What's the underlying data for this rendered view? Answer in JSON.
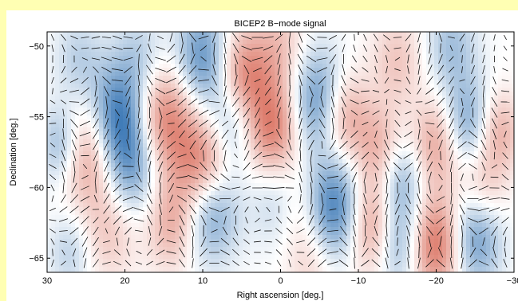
{
  "chart_data": {
    "type": "heatmap",
    "title": "BICEP2 B−mode signal",
    "xlabel": "Right ascension [deg.]",
    "ylabel": "Declination [deg.]",
    "xlim": [
      30,
      -30
    ],
    "ylim": [
      -66,
      -49
    ],
    "x_ticks": [
      30,
      20,
      10,
      0,
      -10,
      -20,
      -30
    ],
    "x_tick_labels": [
      "30",
      "20",
      "10",
      "0",
      "−10",
      "−20",
      "−30"
    ],
    "y_ticks": [
      -50,
      -55,
      -60,
      -65
    ],
    "y_tick_labels": [
      "−50",
      "−55",
      "−60",
      "−65"
    ],
    "colormap": [
      "#2166ac",
      "#ffffff",
      "#d6604d"
    ],
    "grid": false,
    "blobs": [
      {
        "ra": 5,
        "dec": -52.5,
        "amp": 0.95,
        "width": 2.5
      },
      {
        "ra": 10,
        "dec": -51,
        "amp": -0.75,
        "width": 2.6
      },
      {
        "ra": 15,
        "dec": -55,
        "amp": 0.8,
        "width": 2.8
      },
      {
        "ra": 21,
        "dec": -55,
        "amp": -0.85,
        "width": 2.6
      },
      {
        "ra": 25,
        "dec": -57.5,
        "amp": 0.7,
        "width": 2.6
      },
      {
        "ra": 28,
        "dec": -57,
        "amp": -0.6,
        "width": 2.0
      },
      {
        "ra": 19,
        "dec": -58.5,
        "amp": -0.6,
        "width": 2.5
      },
      {
        "ra": 10,
        "dec": -58.5,
        "amp": 0.85,
        "width": 2.6
      },
      {
        "ra": 6,
        "dec": -55,
        "amp": -0.7,
        "width": 2.4
      },
      {
        "ra": 1,
        "dec": -56,
        "amp": 0.85,
        "width": 2.5
      },
      {
        "ra": 9,
        "dec": -61.5,
        "amp": -0.75,
        "width": 2.5
      },
      {
        "ra": 0,
        "dec": -60.5,
        "amp": -0.45,
        "width": 2.5
      },
      {
        "ra": -2,
        "dec": -61,
        "amp": 0.35,
        "width": 2.3
      },
      {
        "ra": -5,
        "dec": -54,
        "amp": -0.8,
        "width": 2.6
      },
      {
        "ra": -8,
        "dec": -55,
        "amp": 0.7,
        "width": 2.3
      },
      {
        "ra": -7,
        "dec": -61.5,
        "amp": -0.9,
        "width": 2.6
      },
      {
        "ra": -12,
        "dec": -62.5,
        "amp": 0.8,
        "width": 2.5
      },
      {
        "ra": -13,
        "dec": -57.5,
        "amp": 0.6,
        "width": 2.2
      },
      {
        "ra": -15,
        "dec": -59.5,
        "amp": -0.7,
        "width": 2.4
      },
      {
        "ra": -15,
        "dec": -64,
        "amp": -0.6,
        "width": 2.2
      },
      {
        "ra": -20,
        "dec": -64,
        "amp": 0.9,
        "width": 2.4
      },
      {
        "ra": -20,
        "dec": -57,
        "amp": 0.6,
        "width": 2.3
      },
      {
        "ra": -24,
        "dec": -55.5,
        "amp": -0.6,
        "width": 2.3
      },
      {
        "ra": -25,
        "dec": -63.5,
        "amp": -0.7,
        "width": 2.4
      },
      {
        "ra": -26,
        "dec": -60,
        "amp": 0.4,
        "width": 2.2
      },
      {
        "ra": -28,
        "dec": -56,
        "amp": 0.5,
        "width": 2.0
      },
      {
        "ra": 18,
        "dec": -51,
        "amp": -0.35,
        "width": 2.3
      },
      {
        "ra": 0,
        "dec": -50,
        "amp": 0.35,
        "width": 2.3
      },
      {
        "ra": -15,
        "dec": -51,
        "amp": 0.35,
        "width": 2.3
      },
      {
        "ra": -22,
        "dec": -50,
        "amp": -0.4,
        "width": 2.3
      },
      {
        "ra": 26,
        "dec": -51,
        "amp": -0.3,
        "width": 2.2
      },
      {
        "ra": 22,
        "dec": -63,
        "amp": 0.35,
        "width": 2.5
      },
      {
        "ra": 14,
        "dec": -62.5,
        "amp": 0.5,
        "width": 2.3
      },
      {
        "ra": -4,
        "dec": -65,
        "amp": 0.3,
        "width": 2.3
      },
      {
        "ra": 27,
        "dec": -64.5,
        "amp": -0.3,
        "width": 2.0
      }
    ]
  }
}
